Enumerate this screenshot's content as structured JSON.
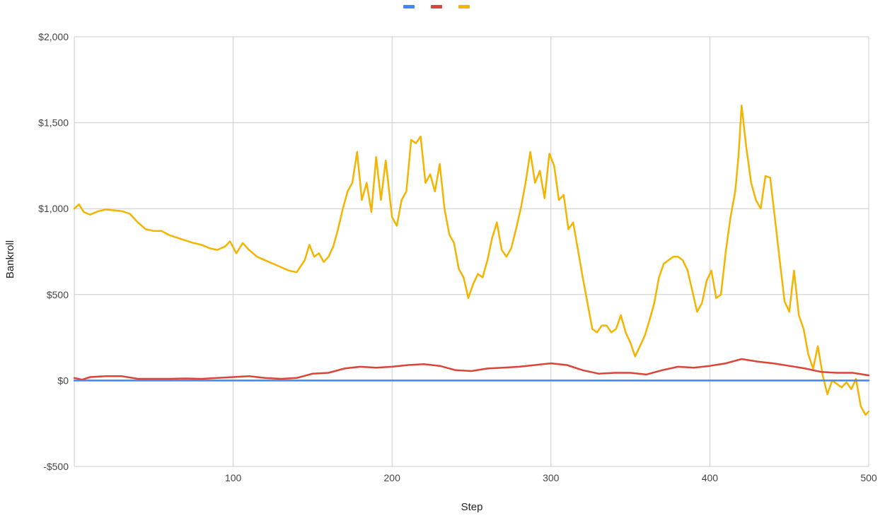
{
  "chart_data": {
    "type": "line",
    "title": "",
    "xlabel": "Step",
    "ylabel": "Bankroll",
    "xlim": [
      0,
      500
    ],
    "ylim": [
      -500,
      2000
    ],
    "xticks": [
      100,
      200,
      300,
      400,
      500
    ],
    "yticks": [
      -500,
      0,
      500,
      1000,
      1500,
      2000
    ],
    "x_tick_labels": [
      "100",
      "200",
      "300",
      "400",
      "500"
    ],
    "y_tick_labels": [
      "-$500",
      "$0",
      "$500",
      "$1,000",
      "$1,500",
      "$2,000"
    ],
    "grid": true,
    "legend": {
      "position": "top-center",
      "shows_names": false
    },
    "series": [
      {
        "color": "#4285f4",
        "points": [
          [
            0,
            0
          ],
          [
            500,
            0
          ]
        ]
      },
      {
        "color": "#db4437",
        "points": [
          [
            0,
            15
          ],
          [
            5,
            5
          ],
          [
            10,
            20
          ],
          [
            20,
            25
          ],
          [
            30,
            25
          ],
          [
            40,
            10
          ],
          [
            50,
            10
          ],
          [
            60,
            10
          ],
          [
            70,
            12
          ],
          [
            80,
            10
          ],
          [
            90,
            15
          ],
          [
            100,
            20
          ],
          [
            110,
            25
          ],
          [
            120,
            15
          ],
          [
            130,
            10
          ],
          [
            140,
            15
          ],
          [
            150,
            40
          ],
          [
            160,
            45
          ],
          [
            170,
            70
          ],
          [
            180,
            80
          ],
          [
            190,
            75
          ],
          [
            200,
            80
          ],
          [
            210,
            90
          ],
          [
            220,
            95
          ],
          [
            230,
            85
          ],
          [
            240,
            60
          ],
          [
            250,
            55
          ],
          [
            260,
            70
          ],
          [
            270,
            75
          ],
          [
            280,
            80
          ],
          [
            290,
            90
          ],
          [
            300,
            100
          ],
          [
            310,
            90
          ],
          [
            320,
            60
          ],
          [
            330,
            40
          ],
          [
            340,
            45
          ],
          [
            350,
            45
          ],
          [
            360,
            35
          ],
          [
            370,
            60
          ],
          [
            380,
            80
          ],
          [
            390,
            75
          ],
          [
            400,
            85
          ],
          [
            410,
            100
          ],
          [
            420,
            125
          ],
          [
            430,
            110
          ],
          [
            440,
            100
          ],
          [
            450,
            85
          ],
          [
            460,
            70
          ],
          [
            470,
            50
          ],
          [
            480,
            45
          ],
          [
            490,
            45
          ],
          [
            500,
            30
          ]
        ]
      },
      {
        "color": "#f4b400",
        "points": [
          [
            0,
            1000
          ],
          [
            3,
            1025
          ],
          [
            6,
            980
          ],
          [
            10,
            965
          ],
          [
            15,
            985
          ],
          [
            20,
            995
          ],
          [
            25,
            990
          ],
          [
            30,
            985
          ],
          [
            35,
            970
          ],
          [
            40,
            920
          ],
          [
            45,
            880
          ],
          [
            50,
            870
          ],
          [
            55,
            870
          ],
          [
            60,
            845
          ],
          [
            65,
            830
          ],
          [
            70,
            815
          ],
          [
            75,
            800
          ],
          [
            80,
            790
          ],
          [
            85,
            770
          ],
          [
            90,
            760
          ],
          [
            95,
            780
          ],
          [
            98,
            810
          ],
          [
            102,
            740
          ],
          [
            106,
            800
          ],
          [
            110,
            760
          ],
          [
            115,
            720
          ],
          [
            120,
            700
          ],
          [
            125,
            680
          ],
          [
            130,
            660
          ],
          [
            135,
            640
          ],
          [
            140,
            630
          ],
          [
            145,
            700
          ],
          [
            148,
            790
          ],
          [
            151,
            720
          ],
          [
            154,
            740
          ],
          [
            157,
            690
          ],
          [
            160,
            720
          ],
          [
            163,
            780
          ],
          [
            166,
            880
          ],
          [
            169,
            1000
          ],
          [
            172,
            1100
          ],
          [
            175,
            1150
          ],
          [
            178,
            1330
          ],
          [
            181,
            1050
          ],
          [
            184,
            1150
          ],
          [
            187,
            980
          ],
          [
            190,
            1300
          ],
          [
            193,
            1050
          ],
          [
            196,
            1280
          ],
          [
            200,
            950
          ],
          [
            203,
            900
          ],
          [
            206,
            1050
          ],
          [
            209,
            1100
          ],
          [
            212,
            1400
          ],
          [
            215,
            1380
          ],
          [
            218,
            1420
          ],
          [
            221,
            1150
          ],
          [
            224,
            1200
          ],
          [
            227,
            1100
          ],
          [
            230,
            1260
          ],
          [
            233,
            1000
          ],
          [
            236,
            850
          ],
          [
            239,
            800
          ],
          [
            242,
            650
          ],
          [
            245,
            600
          ],
          [
            248,
            480
          ],
          [
            251,
            560
          ],
          [
            254,
            620
          ],
          [
            257,
            600
          ],
          [
            260,
            700
          ],
          [
            263,
            830
          ],
          [
            266,
            920
          ],
          [
            269,
            760
          ],
          [
            272,
            720
          ],
          [
            275,
            770
          ],
          [
            278,
            880
          ],
          [
            281,
            1000
          ],
          [
            284,
            1150
          ],
          [
            287,
            1330
          ],
          [
            290,
            1150
          ],
          [
            293,
            1220
          ],
          [
            296,
            1060
          ],
          [
            299,
            1320
          ],
          [
            302,
            1250
          ],
          [
            305,
            1050
          ],
          [
            308,
            1080
          ],
          [
            311,
            880
          ],
          [
            314,
            920
          ],
          [
            317,
            760
          ],
          [
            320,
            600
          ],
          [
            323,
            450
          ],
          [
            326,
            300
          ],
          [
            329,
            280
          ],
          [
            332,
            320
          ],
          [
            335,
            320
          ],
          [
            338,
            280
          ],
          [
            341,
            300
          ],
          [
            344,
            380
          ],
          [
            347,
            280
          ],
          [
            350,
            220
          ],
          [
            353,
            140
          ],
          [
            356,
            200
          ],
          [
            359,
            260
          ],
          [
            362,
            350
          ],
          [
            365,
            450
          ],
          [
            368,
            600
          ],
          [
            371,
            680
          ],
          [
            374,
            700
          ],
          [
            377,
            720
          ],
          [
            380,
            720
          ],
          [
            383,
            700
          ],
          [
            386,
            640
          ],
          [
            389,
            520
          ],
          [
            392,
            400
          ],
          [
            395,
            450
          ],
          [
            398,
            580
          ],
          [
            401,
            640
          ],
          [
            404,
            480
          ],
          [
            407,
            500
          ],
          [
            410,
            750
          ],
          [
            413,
            950
          ],
          [
            416,
            1100
          ],
          [
            418,
            1300
          ],
          [
            420,
            1600
          ],
          [
            423,
            1350
          ],
          [
            426,
            1150
          ],
          [
            429,
            1050
          ],
          [
            432,
            1000
          ],
          [
            435,
            1190
          ],
          [
            438,
            1180
          ],
          [
            441,
            940
          ],
          [
            444,
            700
          ],
          [
            447,
            460
          ],
          [
            450,
            400
          ],
          [
            453,
            640
          ],
          [
            456,
            380
          ],
          [
            459,
            300
          ],
          [
            462,
            150
          ],
          [
            465,
            70
          ],
          [
            468,
            200
          ],
          [
            471,
            30
          ],
          [
            474,
            -80
          ],
          [
            477,
            0
          ],
          [
            480,
            -20
          ],
          [
            483,
            -40
          ],
          [
            486,
            -10
          ],
          [
            489,
            -50
          ],
          [
            492,
            10
          ],
          [
            495,
            -150
          ],
          [
            498,
            -200
          ],
          [
            500,
            -180
          ]
        ]
      }
    ]
  }
}
